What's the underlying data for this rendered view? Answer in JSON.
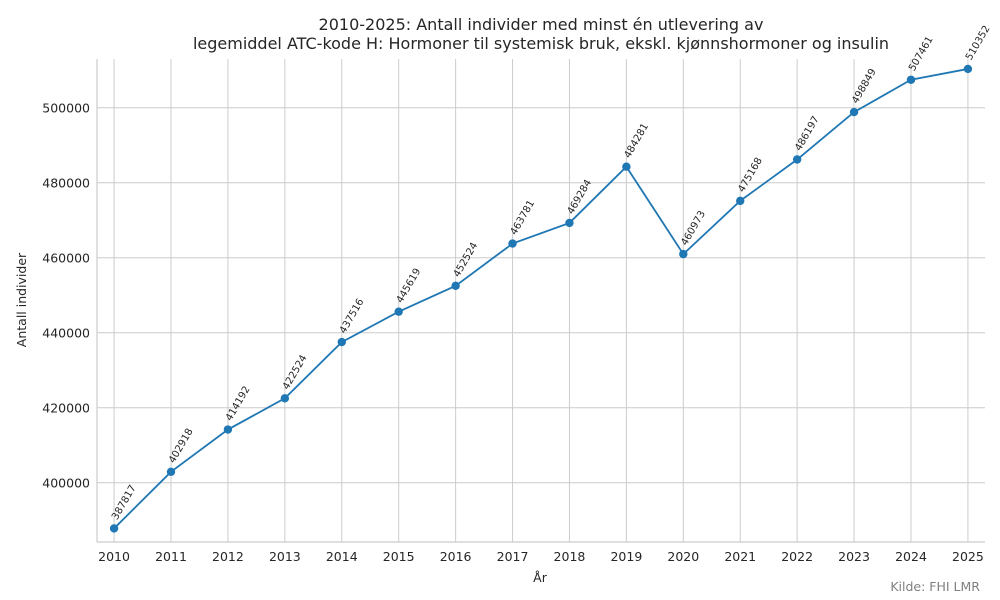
{
  "chart_data": {
    "type": "line",
    "title": "2010-2025: Antall individer med minst én utlevering av\nlegemiddel ATC-kode H: Hormoner til systemisk bruk, ekskl. kjønnshormoner og insulin",
    "xlabel": "År",
    "ylabel": "Antall individer",
    "x": [
      2010,
      2011,
      2012,
      2013,
      2014,
      2015,
      2016,
      2017,
      2018,
      2019,
      2020,
      2021,
      2022,
      2023,
      2024,
      2025
    ],
    "y": [
      387817,
      402918,
      414192,
      422524,
      437516,
      445619,
      452524,
      463781,
      469284,
      484281,
      460973,
      475168,
      486197,
      498849,
      507461,
      510352
    ],
    "data_labels": [
      "387817",
      "402918",
      "414192",
      "422524",
      "437516",
      "445619",
      "452524",
      "463781",
      "469284",
      "484281",
      "460973",
      "475168",
      "486197",
      "498849",
      "507461",
      "510352"
    ],
    "x_tick_labels": [
      "2010",
      "2011",
      "2012",
      "2013",
      "2014",
      "2015",
      "2016",
      "2017",
      "2018",
      "2019",
      "2020",
      "2021",
      "2022",
      "2023",
      "2024",
      "2025"
    ],
    "y_ticks": [
      400000,
      420000,
      440000,
      460000,
      480000,
      500000
    ],
    "y_tick_labels": [
      "400000",
      "420000",
      "440000",
      "460000",
      "480000",
      "500000"
    ],
    "xlim": [
      2009.7,
      2025.3
    ],
    "ylim": [
      384200,
      513000
    ],
    "grid": true,
    "line_color": "#1f77b4",
    "source_note": "Kilde: FHI LMR"
  }
}
